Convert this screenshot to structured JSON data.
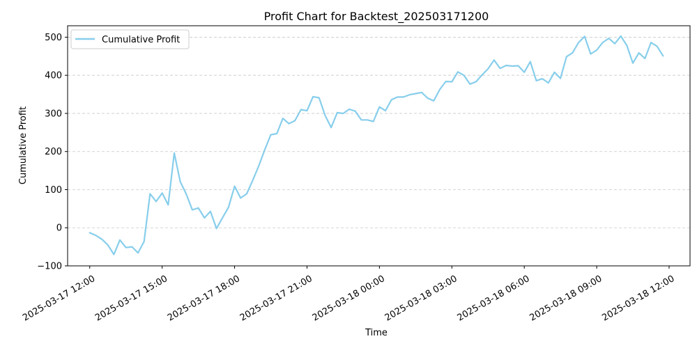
{
  "chart_data": {
    "type": "line",
    "title": "Profit Chart for Backtest_202503171200",
    "xlabel": "Time",
    "ylabel": "Cumulative Profit",
    "ylim": [
      -100,
      530
    ],
    "yticks": [
      -100,
      0,
      100,
      200,
      300,
      400,
      500
    ],
    "ytick_labels": [
      "−100",
      "0",
      "100",
      "200",
      "300",
      "400",
      "500"
    ],
    "xlim": [
      "2025-03-17 11:05",
      "2025-03-18 12:52"
    ],
    "xticks": [
      "2025-03-17 12:00",
      "2025-03-17 15:00",
      "2025-03-17 18:00",
      "2025-03-17 21:00",
      "2025-03-18 00:00",
      "2025-03-18 03:00",
      "2025-03-18 06:00",
      "2025-03-18 09:00",
      "2025-03-18 12:00"
    ],
    "xtick_labels": [
      "2025-03-17 12:00",
      "2025-03-17 15:00",
      "2025-03-17 18:00",
      "2025-03-17 21:00",
      "2025-03-18 00:00",
      "2025-03-18 03:00",
      "2025-03-18 06:00",
      "2025-03-18 09:00",
      "2025-03-18 12:00"
    ],
    "grid": "y-dashed",
    "legend_position": "top-left",
    "series": [
      {
        "name": "Cumulative Profit",
        "color": "#87ceeb",
        "points": [
          [
            "2025-03-17 12:00",
            -13
          ],
          [
            "2025-03-17 12:15",
            -20
          ],
          [
            "2025-03-17 12:30",
            -30
          ],
          [
            "2025-03-17 12:45",
            -45
          ],
          [
            "2025-03-17 13:00",
            -70
          ],
          [
            "2025-03-17 13:15",
            -32
          ],
          [
            "2025-03-17 13:30",
            -52
          ],
          [
            "2025-03-17 13:45",
            -50
          ],
          [
            "2025-03-17 14:00",
            -66
          ],
          [
            "2025-03-17 14:15",
            -36
          ],
          [
            "2025-03-17 14:30",
            89
          ],
          [
            "2025-03-17 14:45",
            69
          ],
          [
            "2025-03-17 15:00",
            91
          ],
          [
            "2025-03-17 15:15",
            60
          ],
          [
            "2025-03-17 15:30",
            196
          ],
          [
            "2025-03-17 15:45",
            121
          ],
          [
            "2025-03-17 16:00",
            88
          ],
          [
            "2025-03-17 16:15",
            47
          ],
          [
            "2025-03-17 16:30",
            52
          ],
          [
            "2025-03-17 16:45",
            26
          ],
          [
            "2025-03-17 17:00",
            43
          ],
          [
            "2025-03-17 17:15",
            -2
          ],
          [
            "2025-03-17 17:30",
            26
          ],
          [
            "2025-03-17 17:45",
            54
          ],
          [
            "2025-03-17 18:00",
            109
          ],
          [
            "2025-03-17 18:15",
            78
          ],
          [
            "2025-03-17 18:30",
            89
          ],
          [
            "2025-03-17 18:45",
            124
          ],
          [
            "2025-03-17 19:00",
            162
          ],
          [
            "2025-03-17 19:15",
            205
          ],
          [
            "2025-03-17 19:30",
            244
          ],
          [
            "2025-03-17 19:45",
            247
          ],
          [
            "2025-03-17 20:00",
            287
          ],
          [
            "2025-03-17 20:15",
            273
          ],
          [
            "2025-03-17 20:30",
            281
          ],
          [
            "2025-03-17 20:45",
            310
          ],
          [
            "2025-03-17 21:00",
            307
          ],
          [
            "2025-03-17 21:15",
            344
          ],
          [
            "2025-03-17 21:30",
            341
          ],
          [
            "2025-03-17 21:45",
            295
          ],
          [
            "2025-03-17 22:00",
            263
          ],
          [
            "2025-03-17 22:15",
            302
          ],
          [
            "2025-03-17 22:30",
            300
          ],
          [
            "2025-03-17 22:45",
            311
          ],
          [
            "2025-03-17 23:00",
            306
          ],
          [
            "2025-03-17 23:15",
            283
          ],
          [
            "2025-03-17 23:30",
            283
          ],
          [
            "2025-03-17 23:45",
            279
          ],
          [
            "2025-03-18 00:00",
            317
          ],
          [
            "2025-03-18 00:15",
            307
          ],
          [
            "2025-03-18 00:30",
            336
          ],
          [
            "2025-03-18 00:45",
            343
          ],
          [
            "2025-03-18 01:00",
            343
          ],
          [
            "2025-03-18 01:15",
            349
          ],
          [
            "2025-03-18 01:30",
            352
          ],
          [
            "2025-03-18 01:45",
            355
          ],
          [
            "2025-03-18 02:00",
            340
          ],
          [
            "2025-03-18 02:15",
            333
          ],
          [
            "2025-03-18 02:30",
            363
          ],
          [
            "2025-03-18 02:45",
            384
          ],
          [
            "2025-03-18 03:00",
            383
          ],
          [
            "2025-03-18 03:15",
            409
          ],
          [
            "2025-03-18 03:30",
            400
          ],
          [
            "2025-03-18 03:45",
            377
          ],
          [
            "2025-03-18 04:00",
            383
          ],
          [
            "2025-03-18 04:15",
            401
          ],
          [
            "2025-03-18 04:30",
            417
          ],
          [
            "2025-03-18 04:45",
            440
          ],
          [
            "2025-03-18 05:00",
            418
          ],
          [
            "2025-03-18 05:15",
            426
          ],
          [
            "2025-03-18 05:30",
            424
          ],
          [
            "2025-03-18 05:45",
            425
          ],
          [
            "2025-03-18 06:00",
            408
          ],
          [
            "2025-03-18 06:15",
            436
          ],
          [
            "2025-03-18 06:30",
            386
          ],
          [
            "2025-03-18 06:45",
            391
          ],
          [
            "2025-03-18 07:00",
            380
          ],
          [
            "2025-03-18 07:15",
            408
          ],
          [
            "2025-03-18 07:30",
            392
          ],
          [
            "2025-03-18 07:45",
            449
          ],
          [
            "2025-03-18 08:00",
            459
          ],
          [
            "2025-03-18 08:15",
            486
          ],
          [
            "2025-03-18 08:30",
            502
          ],
          [
            "2025-03-18 08:45",
            456
          ],
          [
            "2025-03-18 09:00",
            466
          ],
          [
            "2025-03-18 09:15",
            486
          ],
          [
            "2025-03-18 09:30",
            497
          ],
          [
            "2025-03-18 09:45",
            483
          ],
          [
            "2025-03-18 10:00",
            503
          ],
          [
            "2025-03-18 10:15",
            478
          ],
          [
            "2025-03-18 10:30",
            432
          ],
          [
            "2025-03-18 10:45",
            459
          ],
          [
            "2025-03-18 11:00",
            444
          ],
          [
            "2025-03-18 11:15",
            486
          ],
          [
            "2025-03-18 11:30",
            476
          ],
          [
            "2025-03-18 11:45",
            451
          ]
        ]
      }
    ]
  }
}
